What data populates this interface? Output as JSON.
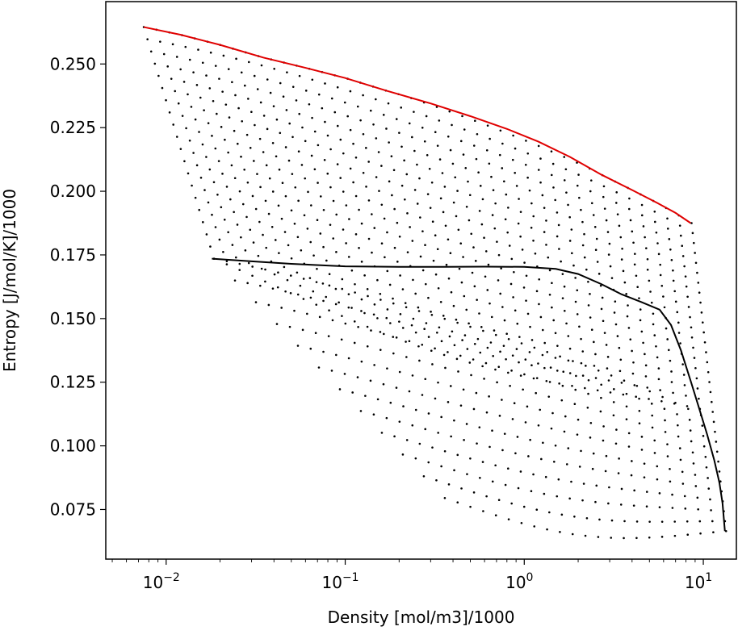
{
  "chart_data": {
    "type": "scatter",
    "xlabel": "Density [mol/m3]/1000",
    "ylabel": "Entropy [J/mol/K]/1000",
    "xscale": "log",
    "yscale": "linear",
    "xlim": [
      0.0046,
      15.3
    ],
    "ylim": [
      0.0555,
      0.2745
    ],
    "grid": false,
    "x_ticks": [
      {
        "value": 0.01,
        "base": "10",
        "exp": "−2"
      },
      {
        "value": 0.1,
        "base": "10",
        "exp": "−1"
      },
      {
        "value": 1,
        "base": "10",
        "exp": "0"
      },
      {
        "value": 10,
        "base": "10",
        "exp": "1"
      }
    ],
    "y_ticks": [
      "0.075",
      "0.100",
      "0.125",
      "0.150",
      "0.175",
      "0.200",
      "0.225",
      "0.250"
    ],
    "colors": {
      "isotherm_points": "#000000",
      "saturation_curve": "#e00000",
      "isentropic_curve": "#000000"
    },
    "series": [
      {
        "kind": "line",
        "color": "#e00000",
        "points": [
          [
            0.0075,
            0.2645
          ],
          [
            0.012,
            0.2615
          ],
          [
            0.02,
            0.2575
          ],
          [
            0.035,
            0.2525
          ],
          [
            0.06,
            0.2485
          ],
          [
            0.1,
            0.2445
          ],
          [
            0.17,
            0.2395
          ],
          [
            0.3,
            0.2345
          ],
          [
            0.5,
            0.2295
          ],
          [
            0.8,
            0.2245
          ],
          [
            1.2,
            0.2195
          ],
          [
            1.8,
            0.2135
          ],
          [
            2.7,
            0.2065
          ],
          [
            4.0,
            0.2005
          ],
          [
            5.5,
            0.1955
          ],
          [
            7.0,
            0.1915
          ],
          [
            8.5,
            0.1875
          ]
        ]
      },
      {
        "kind": "line",
        "color": "#000000",
        "points": [
          [
            0.018,
            0.1735
          ],
          [
            0.03,
            0.1725
          ],
          [
            0.05,
            0.1715
          ],
          [
            0.1,
            0.1705
          ],
          [
            0.2,
            0.1703
          ],
          [
            0.35,
            0.1703
          ],
          [
            0.6,
            0.1704
          ],
          [
            1.0,
            0.1703
          ],
          [
            1.5,
            0.1695
          ],
          [
            2.0,
            0.1675
          ],
          [
            2.7,
            0.1635
          ],
          [
            3.5,
            0.1595
          ],
          [
            4.5,
            0.1565
          ],
          [
            5.7,
            0.1535
          ],
          [
            6.6,
            0.1475
          ],
          [
            7.5,
            0.1375
          ],
          [
            8.5,
            0.1255
          ],
          [
            9.5,
            0.1145
          ],
          [
            10.5,
            0.1045
          ],
          [
            11.5,
            0.0945
          ],
          [
            12.3,
            0.0855
          ],
          [
            12.8,
            0.0775
          ],
          [
            13.2,
            0.0665
          ]
        ]
      },
      {
        "kind": "points",
        "color": "#000000",
        "family": "isotherm-grid",
        "curve_count": 32,
        "upper_start": {
          "x_min": 0.0075,
          "x_max": 8.6
        },
        "lower_start": {
          "x_min": 0.0185,
          "x_max": 0.36,
          "y_top": 0.1735,
          "y_bottom": 0.0795
        },
        "dense_end": {
          "x_min": 8.6,
          "x_max": 13.4,
          "y_top": 0.1875,
          "y_bottom": 0.0665
        }
      }
    ]
  }
}
